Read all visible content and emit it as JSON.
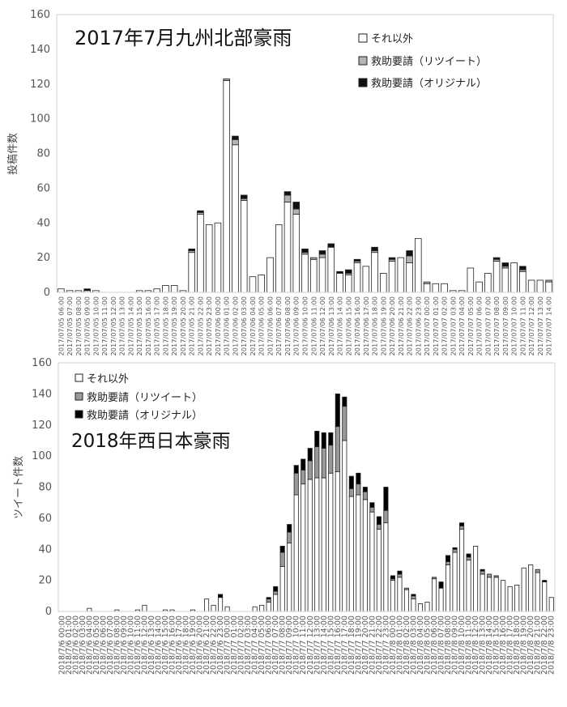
{
  "chart_data": [
    {
      "type": "bar",
      "stacked": true,
      "title": "2017年7月九州北部豪雨",
      "ylabel": "投稿件数",
      "ylim": [
        0,
        160
      ],
      "yticks": [
        0,
        20,
        40,
        60,
        80,
        100,
        120,
        140,
        160
      ],
      "grid": false,
      "legend_position": "top-right",
      "categories": [
        "2017/07/05 06:00",
        "2017/07/05 07:00",
        "2017/07/05 08:00",
        "2017/07/05 09:00",
        "2017/07/05 10:00",
        "2017/07/05 11:00",
        "2017/07/05 12:00",
        "2017/07/05 13:00",
        "2017/07/05 14:00",
        "2017/07/05 15:00",
        "2017/07/05 16:00",
        "2017/07/05 17:00",
        "2017/07/05 18:00",
        "2017/07/05 19:00",
        "2017/07/05 20:00",
        "2017/07/05 21:00",
        "2017/07/05 22:00",
        "2017/07/05 23:00",
        "2017/07/06 00:00",
        "2017/07/06 01:00",
        "2017/07/06 02:00",
        "2017/07/06 03:00",
        "2017/07/06 04:00",
        "2017/07/06 05:00",
        "2017/07/06 06:00",
        "2017/07/06 07:00",
        "2017/07/06 08:00",
        "2017/07/06 09:00",
        "2017/07/06 10:00",
        "2017/07/06 11:00",
        "2017/07/06 12:00",
        "2017/07/06 13:00",
        "2017/07/06 14:00",
        "2017/07/06 15:00",
        "2017/07/06 16:00",
        "2017/07/06 17:00",
        "2017/07/06 18:00",
        "2017/07/06 19:00",
        "2017/07/06 20:00",
        "2017/07/06 21:00",
        "2017/07/06 22:00",
        "2017/07/06 23:00",
        "2017/07/07 00:00",
        "2017/07/07 01:00",
        "2017/07/07 02:00",
        "2017/07/07 03:00",
        "2017/07/07 04:00",
        "2017/07/07 05:00",
        "2017/07/07 06:00",
        "2017/07/07 07:00",
        "2017/07/07 08:00",
        "2017/07/07 09:00",
        "2017/07/07 10:00",
        "2017/07/07 11:00",
        "2017/07/07 12:00",
        "2017/07/07 13:00",
        "2017/07/07 14:00"
      ],
      "series": [
        {
          "name": "それ以外",
          "color": "#ffffff",
          "values": [
            2,
            1,
            1,
            1,
            1,
            0,
            0,
            0,
            0,
            1,
            1,
            2,
            4,
            4,
            1,
            23,
            45,
            39,
            40,
            122,
            85,
            53,
            9,
            10,
            20,
            39,
            52,
            45,
            22,
            19,
            20,
            26,
            11,
            10,
            17,
            15,
            23,
            11,
            18,
            20,
            17,
            31,
            5,
            5,
            5,
            1,
            1,
            14,
            6,
            11,
            18,
            14,
            17,
            12,
            7,
            7,
            6
          ]
        },
        {
          "name": "救助要請（リツイート）",
          "color": "#b3b3b3",
          "values": [
            0,
            0,
            0,
            0,
            0,
            0,
            0,
            0,
            0,
            0,
            0,
            0,
            0,
            0,
            0,
            1,
            1,
            0,
            0,
            1,
            3,
            1,
            0,
            0,
            0,
            0,
            4,
            3,
            1,
            1,
            2,
            0,
            0,
            1,
            1,
            0,
            1,
            0,
            1,
            0,
            4,
            0,
            1,
            0,
            0,
            0,
            0,
            0,
            0,
            0,
            1,
            1,
            0,
            1,
            0,
            0,
            1
          ]
        },
        {
          "name": "救助要請（オリジナル）",
          "color": "#111111",
          "values": [
            0,
            0,
            0,
            1,
            0,
            0,
            0,
            0,
            0,
            0,
            0,
            0,
            0,
            0,
            0,
            1,
            1,
            0,
            0,
            0,
            2,
            2,
            0,
            0,
            0,
            0,
            2,
            4,
            2,
            0,
            2,
            2,
            1,
            2,
            1,
            0,
            2,
            0,
            1,
            0,
            3,
            0,
            0,
            0,
            0,
            0,
            0,
            0,
            0,
            0,
            1,
            2,
            0,
            2,
            0,
            0,
            0
          ]
        }
      ]
    },
    {
      "type": "bar",
      "stacked": true,
      "title": "2018年西日本豪雨",
      "ylabel": "ツイート件数",
      "ylim": [
        0,
        160
      ],
      "yticks": [
        0,
        20,
        40,
        60,
        80,
        100,
        120,
        140,
        160
      ],
      "grid": false,
      "legend_position": "top-left",
      "categories": [
        "2018/7/6 00:00",
        "2018/7/6 01:00",
        "2018/7/6 02:00",
        "2018/7/6 03:00",
        "2018/7/6 04:00",
        "2018/7/6 05:00",
        "2018/7/6 06:00",
        "2018/7/6 07:00",
        "2018/7/6 08:00",
        "2018/7/6 09:00",
        "2018/7/6 10:00",
        "2018/7/6 11:00",
        "2018/7/6 12:00",
        "2018/7/6 13:00",
        "2018/7/6 14:00",
        "2018/7/6 15:00",
        "2018/7/6 16:00",
        "2018/7/6 17:00",
        "2018/7/6 18:00",
        "2018/7/6 19:00",
        "2018/7/6 20:00",
        "2018/7/6 21:00",
        "2018/7/6 22:00",
        "2018/7/6 23:00",
        "2018/7/7 00:00",
        "2018/7/7 01:00",
        "2018/7/7 02:00",
        "2018/7/7 03:00",
        "2018/7/7 04:00",
        "2018/7/7 05:00",
        "2018/7/7 06:00",
        "2018/7/7 07:00",
        "2018/7/7 08:00",
        "2018/7/7 09:00",
        "2018/7/7 10:00",
        "2018/7/7 11:00",
        "2018/7/7 12:00",
        "2018/7/7 13:00",
        "2018/7/7 14:00",
        "2018/7/7 15:00",
        "2018/7/7 16:00",
        "2018/7/7 17:00",
        "2018/7/7 18:00",
        "2018/7/7 19:00",
        "2018/7/7 20:00",
        "2018/7/7 21:00",
        "2018/7/7 22:00",
        "2018/7/7 23:00",
        "2018/7/8 00:00",
        "2018/7/8 01:00",
        "2018/7/8 02:00",
        "2018/7/8 03:00",
        "2018/7/8 04:00",
        "2018/7/8 05:00",
        "2018/7/8 06:00",
        "2018/7/8 07:00",
        "2018/7/8 08:00",
        "2018/7/8 09:00",
        "2018/7/8 10:00",
        "2018/7/8 11:00",
        "2018/7/8 12:00",
        "2018/7/8 13:00",
        "2018/7/8 14:00",
        "2018/7/8 15:00",
        "2018/7/8 16:00",
        "2018/7/8 17:00",
        "2018/7/8 18:00",
        "2018/7/8 19:00",
        "2018/7/8 20:00",
        "2018/7/8 21:00",
        "2018/7/8 22:00",
        "2018/7/8 23:00"
      ],
      "series": [
        {
          "name": "それ以外",
          "color": "#ffffff",
          "values": [
            0,
            0,
            0,
            0,
            2,
            0,
            0,
            0,
            1,
            0,
            0,
            1,
            4,
            0,
            0,
            1,
            1,
            0,
            0,
            1,
            0,
            8,
            4,
            9,
            3,
            0,
            0,
            0,
            3,
            4,
            6,
            11,
            29,
            44,
            75,
            82,
            85,
            86,
            86,
            89,
            90,
            110,
            74,
            75,
            72,
            64,
            53,
            57,
            20,
            22,
            14,
            8,
            5,
            6,
            21,
            15,
            30,
            38,
            53,
            33,
            42,
            24,
            22,
            22,
            20,
            16,
            17,
            28,
            30,
            25,
            19,
            9
          ]
        },
        {
          "name": "救助要請（リツイート）",
          "color": "#999999",
          "values": [
            0,
            0,
            0,
            0,
            0,
            0,
            0,
            0,
            0,
            0,
            0,
            0,
            0,
            0,
            0,
            0,
            0,
            0,
            0,
            0,
            0,
            0,
            0,
            0,
            0,
            0,
            0,
            0,
            0,
            0,
            2,
            2,
            9,
            7,
            14,
            9,
            12,
            20,
            19,
            18,
            29,
            22,
            5,
            7,
            5,
            3,
            3,
            8,
            1,
            2,
            1,
            2,
            0,
            0,
            1,
            0,
            2,
            2,
            2,
            2,
            0,
            2,
            2,
            1,
            0,
            0,
            0,
            0,
            0,
            2,
            0,
            0
          ]
        },
        {
          "name": "救助要請（オリジナル）",
          "color": "#000000",
          "values": [
            0,
            0,
            0,
            0,
            0,
            0,
            0,
            0,
            0,
            0,
            0,
            0,
            0,
            0,
            0,
            0,
            0,
            0,
            0,
            0,
            0,
            0,
            0,
            2,
            0,
            0,
            0,
            0,
            0,
            0,
            1,
            3,
            4,
            5,
            5,
            7,
            8,
            10,
            10,
            8,
            21,
            6,
            8,
            7,
            3,
            3,
            5,
            15,
            2,
            2,
            0,
            1,
            0,
            0,
            0,
            4,
            4,
            1,
            2,
            2,
            0,
            1,
            0,
            0,
            0,
            0,
            0,
            0,
            0,
            0,
            1,
            0
          ]
        }
      ]
    }
  ]
}
